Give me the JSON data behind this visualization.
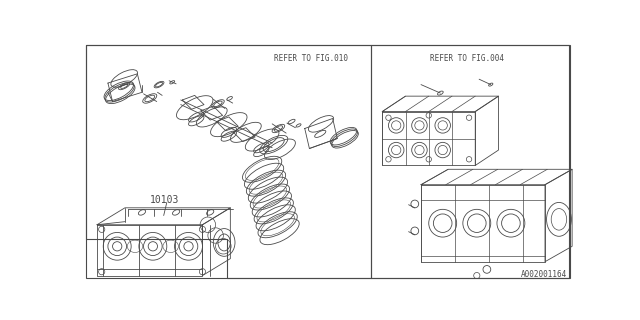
{
  "bg_color": "#ffffff",
  "line_color": "#4a4a4a",
  "text_color": "#4a4a4a",
  "fig_width": 6.4,
  "fig_height": 3.2,
  "dpi": 100,
  "title_ref1": "REFER TO FIG.010",
  "title_ref2": "REFER TO FIG.004",
  "part_number": "10103",
  "watermark": "A002001164",
  "border_lw": 0.8,
  "part_lw": 0.6
}
